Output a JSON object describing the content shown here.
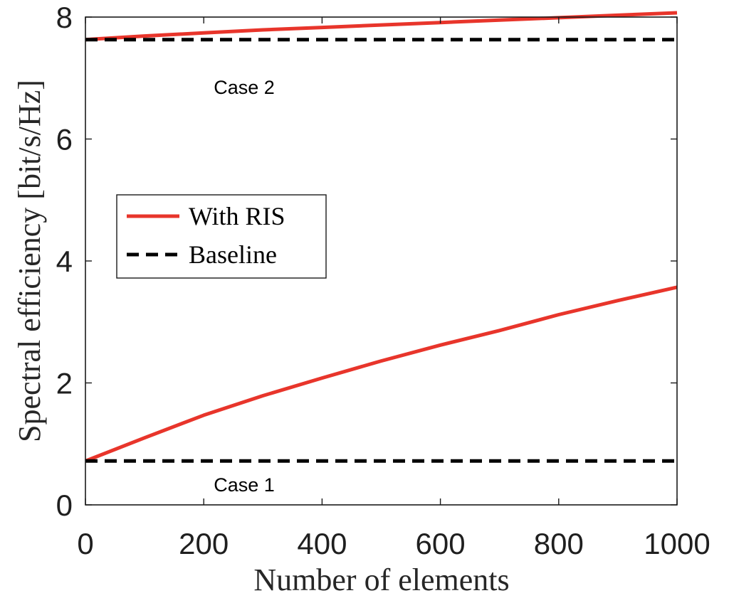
{
  "chart_data": {
    "type": "line",
    "xlabel": "Number of elements",
    "ylabel": "Spectral efficiency [bit/s/Hz]",
    "xlim": [
      0,
      1000
    ],
    "ylim": [
      0,
      8
    ],
    "xticks": [
      0,
      200,
      400,
      600,
      800,
      1000
    ],
    "yticks": [
      0,
      2,
      4,
      6,
      8
    ],
    "grid": false,
    "legend_position": "center-left",
    "legend": [
      "With RIS",
      "Baseline"
    ],
    "annotations": [
      "Case 2",
      "Case 1"
    ],
    "x": [
      0,
      100,
      200,
      300,
      400,
      500,
      600,
      700,
      800,
      900,
      1000
    ],
    "series": [
      {
        "name": "With RIS",
        "case": "Case 2",
        "color": "#e8352b",
        "style": "solid",
        "values": [
          7.63,
          7.69,
          7.74,
          7.79,
          7.83,
          7.87,
          7.91,
          7.95,
          7.99,
          8.03,
          8.07
        ]
      },
      {
        "name": "Baseline",
        "case": "Case 2",
        "color": "#000000",
        "style": "dashed",
        "values": [
          7.63,
          7.63,
          7.63,
          7.63,
          7.63,
          7.63,
          7.63,
          7.63,
          7.63,
          7.63,
          7.63
        ]
      },
      {
        "name": "With RIS",
        "case": "Case 1",
        "color": "#e8352b",
        "style": "solid",
        "values": [
          0.72,
          1.1,
          1.47,
          1.79,
          2.08,
          2.36,
          2.62,
          2.86,
          3.12,
          3.35,
          3.57
        ]
      },
      {
        "name": "Baseline",
        "case": "Case 1",
        "color": "#000000",
        "style": "dashed",
        "values": [
          0.72,
          0.72,
          0.72,
          0.72,
          0.72,
          0.72,
          0.72,
          0.72,
          0.72,
          0.72,
          0.72
        ]
      }
    ]
  }
}
